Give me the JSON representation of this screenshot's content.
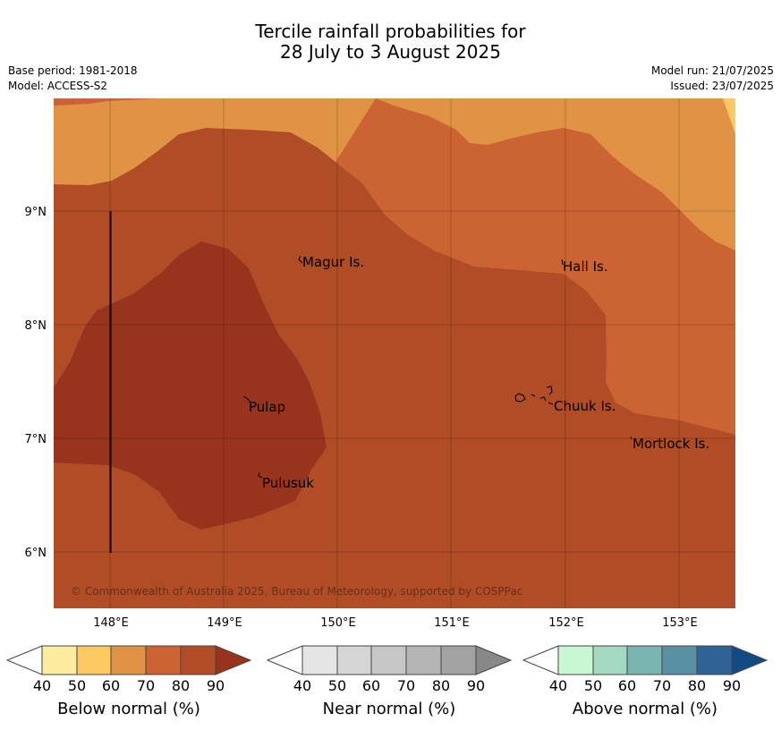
{
  "title_line1": "Tercile rainfall probabilities for",
  "title_line2": "28 July to 3 August 2025",
  "base_period": "Base period: 1981-2018",
  "model": "Model: ACCESS-S2",
  "model_run": "Model run: 21/07/2025",
  "issued": "Issued: 23/07/2025",
  "copyright": "© Commonwealth of Australia 2025, Bureau of Meteorology, supported by COSPPac",
  "map": {
    "lat_labels": [
      "9°N",
      "8°N",
      "7°N",
      "6°N"
    ],
    "lon_labels": [
      "148°E",
      "149°E",
      "150°E",
      "151°E",
      "152°E",
      "153°E"
    ],
    "places": [
      {
        "name": "Magur Is."
      },
      {
        "name": "Hall Is."
      },
      {
        "name": "Pulap"
      },
      {
        "name": "Chuuk Is."
      },
      {
        "name": "Mortlock Is."
      },
      {
        "name": "Pulusuk"
      }
    ],
    "probability_levels": [
      {
        "label": "60-70",
        "color": "#e09245"
      },
      {
        "label": "70-80",
        "color": "#cb6332"
      },
      {
        "label": "80-90",
        "color": "#b04c26"
      },
      {
        "label": "90+",
        "color": "#98341e"
      },
      {
        "label": "50-60",
        "color": "#fec965"
      }
    ]
  },
  "colorbars": [
    {
      "title": "Below normal (%)",
      "ticks": [
        "40",
        "50",
        "60",
        "70",
        "80",
        "90"
      ],
      "colors": [
        "#ffffff",
        "#fdeba1",
        "#fdc962",
        "#e09245",
        "#cb6332",
        "#b04c26",
        "#98341e"
      ]
    },
    {
      "title": "Near normal (%)",
      "ticks": [
        "40",
        "50",
        "60",
        "70",
        "80",
        "90"
      ],
      "colors": [
        "#ffffff",
        "#e5e5e5",
        "#d6d6d6",
        "#c6c6c6",
        "#b4b4b4",
        "#a2a2a2",
        "#888888"
      ]
    },
    {
      "title": "Above normal (%)",
      "ticks": [
        "40",
        "50",
        "60",
        "70",
        "80",
        "90"
      ],
      "colors": [
        "#ffffff",
        "#c7f8d2",
        "#a3d9c0",
        "#7bb5b1",
        "#5a91a2",
        "#306395",
        "#124b83"
      ]
    }
  ]
}
